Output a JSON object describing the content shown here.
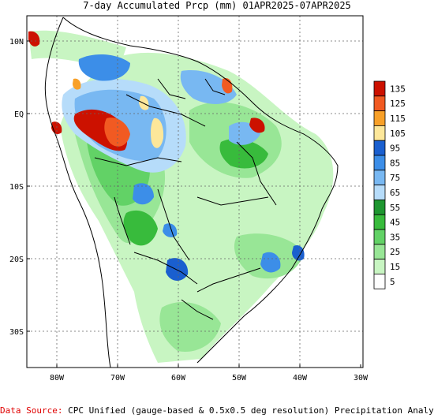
{
  "title": "7-day Accumulated Prcp (mm) 01APR2025-07APR2025",
  "source": {
    "label": "Data Source:",
    "text": "CPC Unified (gauge-based & 0.5x0.5 deg resolution) Precipitation Analysis"
  },
  "map": {
    "lat_labels": [
      "10N",
      "EQ",
      "10S",
      "20S",
      "30S"
    ],
    "lon_labels": [
      "80W",
      "70W",
      "60W",
      "50W",
      "40W",
      "30W"
    ]
  },
  "legend": {
    "levels": [
      {
        "label": "135",
        "color": "#cc1100"
      },
      {
        "label": "125",
        "color": "#f15a22"
      },
      {
        "label": "115",
        "color": "#f8a028"
      },
      {
        "label": "105",
        "color": "#fde79a"
      },
      {
        "label": "95",
        "color": "#1a5fcf"
      },
      {
        "label": "85",
        "color": "#3c8ee8"
      },
      {
        "label": "75",
        "color": "#78b8f2"
      },
      {
        "label": "65",
        "color": "#b6dcfa"
      },
      {
        "label": "55",
        "color": "#1e9630"
      },
      {
        "label": "45",
        "color": "#38bb3c"
      },
      {
        "label": "35",
        "color": "#62d266"
      },
      {
        "label": "25",
        "color": "#98e696"
      },
      {
        "label": "15",
        "color": "#c8f5c2"
      },
      {
        "label": "5",
        "color": "#ffffff"
      }
    ]
  }
}
